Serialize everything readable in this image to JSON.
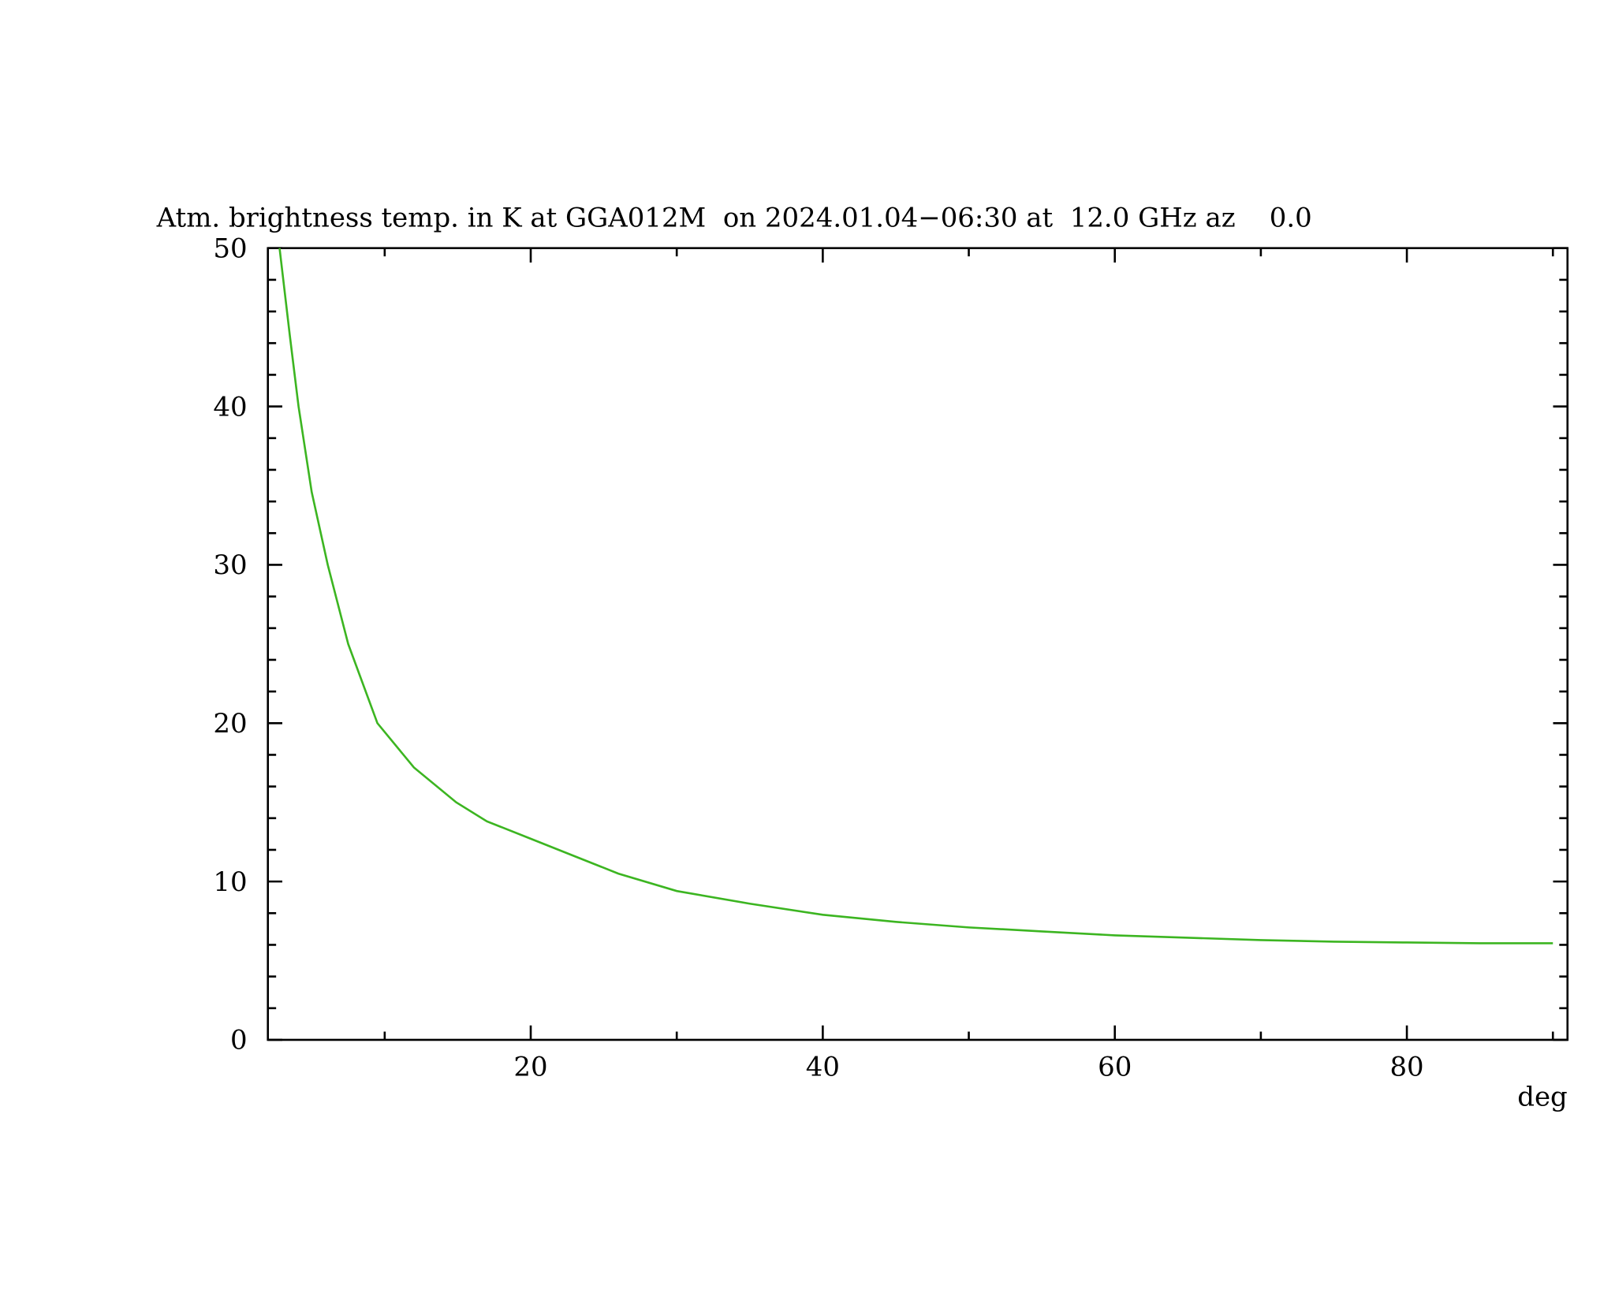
{
  "chart_data": {
    "type": "line",
    "title": "Atm. brightness temp. in K at GGA012M  on 2024.01.04−06:30 at  12.0 GHz az    0.0",
    "xlabel": "deg",
    "x": [
      2.8,
      3.5,
      4.1,
      5,
      6.1,
      7.5,
      9.5,
      12,
      14.9,
      17,
      20,
      23,
      26,
      30,
      35,
      40,
      45,
      50,
      55,
      60,
      65,
      70,
      75,
      80,
      85,
      90
    ],
    "series": [
      {
        "color": "#3cb521",
        "values": [
          50,
          44.5,
          40,
          34.6,
          30,
          25,
          20,
          17.2,
          15,
          13.8,
          12.7,
          11.6,
          10.5,
          9.4,
          8.6,
          7.9,
          7.45,
          7.1,
          6.85,
          6.6,
          6.45,
          6.3,
          6.2,
          6.15,
          6.1,
          6.1
        ]
      }
    ],
    "xlim": [
      2,
      91
    ],
    "ylim": [
      0,
      50
    ],
    "xticks": [
      20,
      40,
      60,
      80
    ],
    "yticks": [
      0,
      10,
      20,
      30,
      40,
      50
    ],
    "xminorticks": [
      10,
      30,
      50,
      70,
      90
    ],
    "yminorticks": [
      2,
      4,
      6,
      8,
      12,
      14,
      16,
      18,
      22,
      24,
      26,
      28,
      32,
      34,
      36,
      38,
      42,
      44,
      46,
      48
    ]
  }
}
